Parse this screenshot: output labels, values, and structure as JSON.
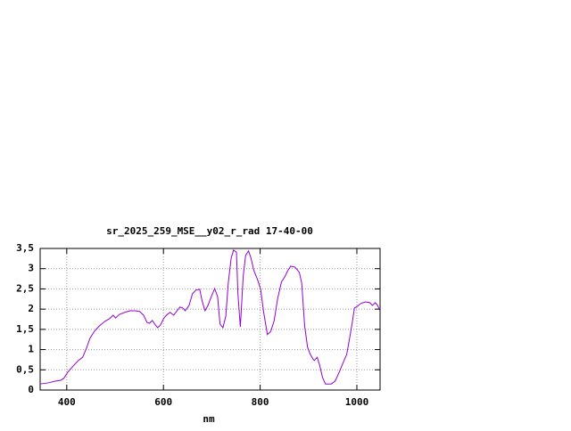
{
  "chart_data": {
    "type": "line",
    "title": "sr_2025_259_MSE__y02_r_rad 17-40-00",
    "xlabel": "nm",
    "x": [
      345,
      363,
      376,
      387,
      394,
      402,
      413,
      424,
      433,
      441,
      448,
      457,
      468,
      479,
      488,
      496,
      501,
      509,
      520,
      531,
      542,
      551,
      559,
      566,
      571,
      577,
      582,
      588,
      594,
      601,
      608,
      614,
      621,
      627,
      634,
      640,
      645,
      653,
      660,
      667,
      675,
      680,
      686,
      692,
      699,
      706,
      712,
      717,
      723,
      729,
      734,
      740,
      745,
      751,
      754,
      759,
      765,
      770,
      776,
      781,
      787,
      794,
      801,
      807,
      815,
      822,
      829,
      836,
      844,
      851,
      857,
      863,
      872,
      881,
      886,
      892,
      898,
      903,
      909,
      912,
      918,
      923,
      929,
      935,
      947,
      955,
      962,
      971,
      979,
      984,
      990,
      995,
      1001,
      1008,
      1018,
      1027,
      1032,
      1038,
      1043,
      1047
    ],
    "values": [
      0.15,
      0.18,
      0.22,
      0.24,
      0.29,
      0.44,
      0.59,
      0.73,
      0.81,
      1.04,
      1.28,
      1.45,
      1.59,
      1.7,
      1.76,
      1.85,
      1.78,
      1.87,
      1.92,
      1.96,
      1.96,
      1.94,
      1.85,
      1.67,
      1.65,
      1.72,
      1.63,
      1.54,
      1.61,
      1.78,
      1.87,
      1.92,
      1.85,
      1.94,
      2.05,
      2.03,
      1.96,
      2.09,
      2.38,
      2.47,
      2.49,
      2.2,
      1.96,
      2.09,
      2.31,
      2.51,
      2.31,
      1.63,
      1.54,
      1.83,
      2.64,
      3.26,
      3.46,
      3.41,
      2.38,
      1.56,
      2.82,
      3.33,
      3.44,
      3.26,
      2.95,
      2.75,
      2.49,
      1.94,
      1.37,
      1.45,
      1.72,
      2.25,
      2.67,
      2.8,
      2.95,
      3.06,
      3.04,
      2.91,
      2.64,
      1.59,
      1.06,
      0.9,
      0.77,
      0.73,
      0.81,
      0.62,
      0.31,
      0.15,
      0.15,
      0.22,
      0.4,
      0.66,
      0.88,
      1.21,
      1.63,
      2.03,
      2.07,
      2.14,
      2.18,
      2.16,
      2.09,
      2.16,
      2.09,
      1.98
    ],
    "color": "#9400d3",
    "xlim": [
      345,
      1048
    ],
    "ylim": [
      0,
      3.5
    ],
    "xticks": [
      400,
      600,
      800,
      1000
    ],
    "yticks": [
      0,
      {
        "value": 0.5,
        "label": "0,5"
      },
      1,
      {
        "value": 1.5,
        "label": "1,5"
      },
      2,
      {
        "value": 2.5,
        "label": "2,5"
      },
      3,
      {
        "value": 3.5,
        "label": "3,5"
      }
    ],
    "grid": true
  }
}
